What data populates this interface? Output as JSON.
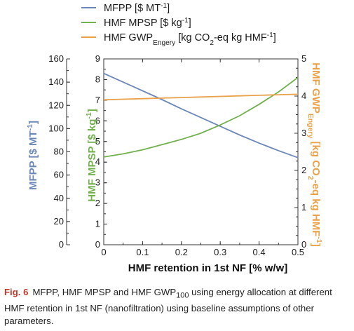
{
  "chart_data": {
    "type": "line",
    "x": [
      0,
      0.05,
      0.1,
      0.15,
      0.2,
      0.25,
      0.3,
      0.35,
      0.4,
      0.45,
      0.5
    ],
    "xlim": [
      0,
      0.5
    ],
    "x_ticks": [
      "0",
      "0.1",
      "0.2",
      "0.3",
      "0.4",
      "0.5"
    ],
    "xlabel": "HMF retention in 1st NF [% w/w]",
    "series": [
      {
        "name": "MFPP [$ MT-1]",
        "legend": {
          "pre": "MFPP [$ MT",
          "sup": "-1",
          "post": "]"
        },
        "axis": "left_outer",
        "color": "#6b87b8",
        "values": [
          147.5,
          140,
          132.5,
          125,
          117,
          109.5,
          102,
          94.5,
          87.5,
          81,
          75
        ]
      },
      {
        "name": "HMF MPSP [$ kg-1]",
        "legend": {
          "pre": "HMF MPSP [$ kg",
          "sup": "-1",
          "post": "]"
        },
        "axis": "left_inner",
        "color": "#72b04d",
        "values": [
          4.25,
          4.4,
          4.6,
          4.85,
          5.1,
          5.4,
          5.8,
          6.25,
          6.8,
          7.4,
          8.1
        ]
      },
      {
        "name": "HMF GWPEngery [kg CO2-eq kg HMF-1]",
        "legend": {
          "pre": "HMF GWP",
          "sub": "Engery",
          "mid": " [kg CO",
          "sub2": "2",
          "post": "-eq kg HMF",
          "sup": "-1",
          "end": "]"
        },
        "axis": "right",
        "color": "#e8a24a",
        "values": [
          3.9,
          3.915,
          3.93,
          3.945,
          3.96,
          3.975,
          3.99,
          4.005,
          4.02,
          4.035,
          4.05
        ]
      }
    ],
    "axes": {
      "left_outer": {
        "label": "MFPP [$ MT-1]",
        "label_parts": {
          "pre": "MFPP [$ MT",
          "sup": "-1",
          "post": "]"
        },
        "ylim": [
          0,
          160
        ],
        "ticks": [
          0,
          20,
          40,
          60,
          80,
          100,
          120,
          140,
          160
        ],
        "color": "#6b87b8"
      },
      "left_inner": {
        "label": "HMF MPSP [$ kg-1]",
        "label_parts": {
          "pre": "HMF MPSP [$ kg",
          "sup": "-1",
          "post": "]"
        },
        "ylim": [
          0,
          9
        ],
        "ticks": [
          0,
          1,
          2,
          3,
          4,
          5,
          6,
          7,
          8,
          9
        ],
        "color": "#72b04d"
      },
      "right": {
        "label": "HMF GWPEngery [kg CO2-eq kg HMF-1]",
        "label_parts": {
          "pre": "HMF GWP",
          "sub": "Engery",
          "mid": " [kg CO",
          "sub2": "2",
          "post": "-eq kg HMF",
          "sup": "-1",
          "end": "]"
        },
        "ylim": [
          0,
          5
        ],
        "ticks": [
          0,
          1,
          2,
          3,
          4,
          5
        ],
        "color": "#e8a24a"
      }
    },
    "legend_position": "top"
  },
  "caption": {
    "fig_label": "Fig. 6",
    "pre": "MFPP, HMF MPSP and HMF GWP",
    "sub": "100",
    "post": " using energy allocation at different HMF retention in 1st NF (nanofiltration) using baseline assumptions of other parameters."
  }
}
